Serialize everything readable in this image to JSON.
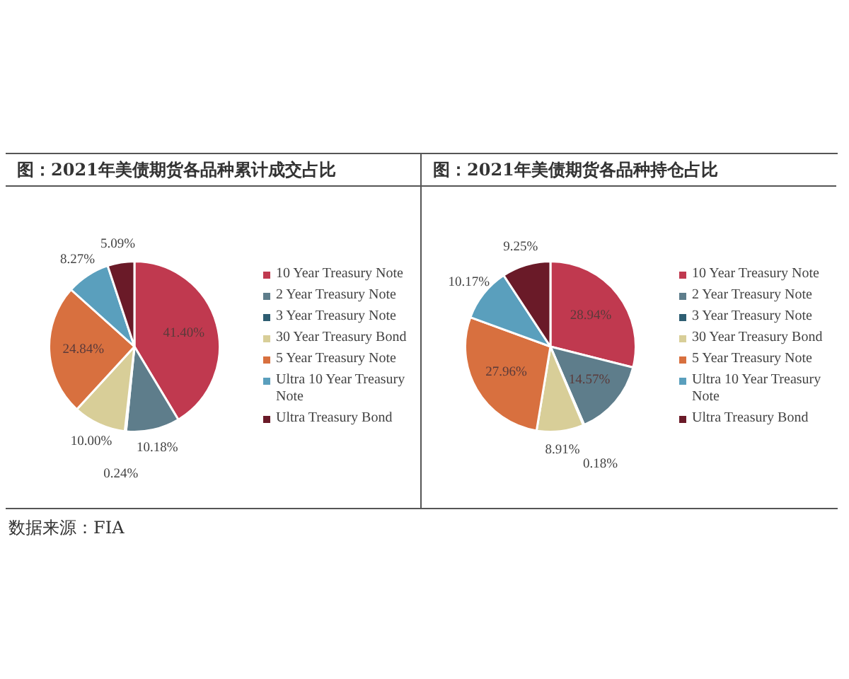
{
  "chart_data": [
    {
      "type": "pie",
      "title": "图：2021年美债期货各品种累计成交占比",
      "categories": [
        "10 Year Treasury Note",
        "2 Year Treasury Note",
        "3 Year Treasury Note",
        "30 Year Treasury Bond",
        "5 Year Treasury Note",
        "Ultra 10 Year Treasury Note",
        "Ultra Treasury Bond"
      ],
      "values": [
        41.4,
        10.18,
        0.24,
        10.0,
        24.84,
        8.27,
        5.09
      ],
      "value_labels": [
        "41.40%",
        "10.18%",
        "0.24%",
        "10.00%",
        "24.84%",
        "8.27%",
        "5.09%"
      ],
      "colors": [
        "#c0394f",
        "#5e7d8b",
        "#2e5e72",
        "#d8ce98",
        "#d8703f",
        "#5a9fbd",
        "#6a1a28"
      ],
      "legend": "right",
      "annotations": [
        "数据来源：FIA"
      ]
    },
    {
      "type": "pie",
      "title": "图：2021年美债期货各品种持仓占比",
      "categories": [
        "10 Year Treasury Note",
        "2 Year Treasury Note",
        "3 Year Treasury Note",
        "30 Year Treasury Bond",
        "5 Year Treasury Note",
        "Ultra 10 Year Treasury Note",
        "Ultra Treasury Bond"
      ],
      "values": [
        28.94,
        14.57,
        0.18,
        8.91,
        27.96,
        10.17,
        9.25
      ],
      "value_labels": [
        "28.94%",
        "14.57%",
        "0.18%",
        "8.91%",
        "27.96%",
        "10.17%",
        "9.25%"
      ],
      "colors": [
        "#c0394f",
        "#5e7d8b",
        "#2e5e72",
        "#d8ce98",
        "#d8703f",
        "#5a9fbd",
        "#6a1a28"
      ],
      "legend": "right"
    }
  ]
}
